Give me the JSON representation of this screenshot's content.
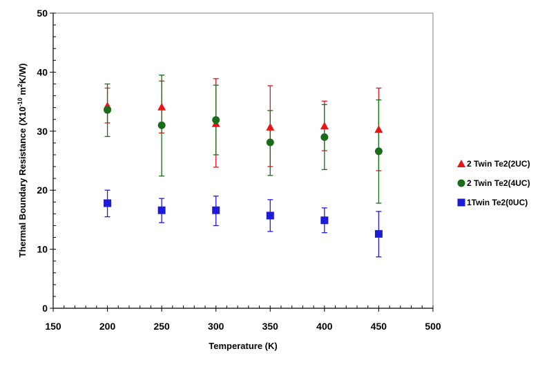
{
  "chart_data": {
    "type": "scatter",
    "xlabel": "Temperature (K)",
    "ylabel_main": "Thermal Boundary Resistance (X10",
    "ylabel_exp": "-10",
    "ylabel_unit_pre": " m",
    "ylabel_unit_sup": "2",
    "ylabel_unit_post": "K/W)",
    "xlim": [
      150,
      500
    ],
    "ylim": [
      0,
      50
    ],
    "x_ticks": [
      150,
      200,
      250,
      300,
      350,
      400,
      450,
      500
    ],
    "y_ticks": [
      0,
      10,
      20,
      30,
      40,
      50
    ],
    "x_minor_step": 10,
    "y_minor_step": 2,
    "grid": false,
    "legend_position": "right",
    "series": [
      {
        "name": "2 Twin Te2(2UC)",
        "marker": "triangle",
        "color": "#e8141a",
        "x": [
          200,
          250,
          300,
          350,
          400,
          450
        ],
        "y": [
          34.3,
          34.1,
          31.3,
          30.7,
          30.9,
          30.3
        ],
        "err_low": [
          31.4,
          29.7,
          23.9,
          24.0,
          26.7,
          23.3
        ],
        "err_high": [
          37.3,
          38.5,
          38.9,
          37.7,
          35.1,
          37.3
        ]
      },
      {
        "name": "2 Twin Te2(4UC)",
        "marker": "circle",
        "color": "#1a6b1a",
        "x": [
          200,
          250,
          300,
          350,
          400,
          450
        ],
        "y": [
          33.6,
          31.0,
          31.9,
          28.1,
          29.0,
          26.6
        ],
        "err_low": [
          29.1,
          22.4,
          26.0,
          22.5,
          23.5,
          17.8
        ],
        "err_high": [
          38.0,
          39.5,
          37.8,
          33.5,
          34.5,
          35.3
        ]
      },
      {
        "name": "1Twin Te2(0UC)",
        "marker": "square",
        "color": "#1c1cd8",
        "x": [
          200,
          250,
          300,
          350,
          400,
          450
        ],
        "y": [
          17.8,
          16.6,
          16.6,
          15.7,
          14.9,
          12.6
        ],
        "err_low": [
          15.5,
          14.5,
          14.0,
          13.0,
          12.8,
          8.7
        ],
        "err_high": [
          20.0,
          18.6,
          19.0,
          18.4,
          17.0,
          16.4
        ]
      }
    ]
  }
}
